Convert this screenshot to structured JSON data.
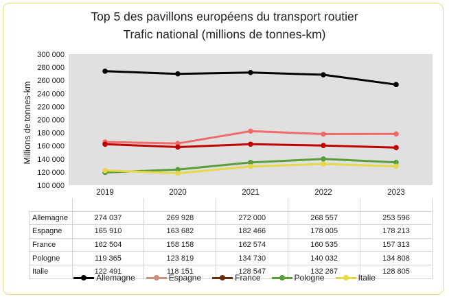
{
  "chart_data": {
    "type": "line",
    "title": "Top 5 des pavillons européens du transport routier",
    "subtitle": "Trafic national (millions de tonnes-km)",
    "ylabel": "Millions de tonnes-km",
    "categories": [
      "2019",
      "2020",
      "2021",
      "2022",
      "2023"
    ],
    "ylim": [
      100000,
      300000
    ],
    "yticks": [
      "100 000",
      "120 000",
      "140 000",
      "160 000",
      "180 000",
      "200 000",
      "220 000",
      "240 000",
      "260 000",
      "280 000",
      "300 000"
    ],
    "grid": false,
    "plot_background": "#e0e0e0",
    "legend_position": "bottom",
    "series": [
      {
        "name": "Allemagne",
        "color": "#000000",
        "legend_color": "#000000",
        "values": [
          274037,
          269928,
          272000,
          268557,
          253596
        ],
        "labels": [
          "274 037",
          "269 928",
          "272 000",
          "268 557",
          "253 596"
        ]
      },
      {
        "name": "Espagne",
        "color": "#f26b6b",
        "legend_color": "#c9907c",
        "values": [
          165910,
          163682,
          182466,
          178005,
          178213
        ],
        "labels": [
          "165 910",
          "163 682",
          "182 466",
          "178 005",
          "178 213"
        ]
      },
      {
        "name": "France",
        "color": "#c00000",
        "legend_color": "#6b2b0f",
        "values": [
          162504,
          158158,
          162574,
          160535,
          157313
        ],
        "labels": [
          "162 504",
          "158 158",
          "162 574",
          "160 535",
          "157 313"
        ]
      },
      {
        "name": "Pologne",
        "color": "#5a9e3a",
        "legend_color": "#5a9e3a",
        "values": [
          119365,
          123819,
          134730,
          140032,
          134808
        ],
        "labels": [
          "119 365",
          "123 819",
          "134 730",
          "140 032",
          "134 808"
        ]
      },
      {
        "name": "Italie",
        "color": "#e7d84a",
        "legend_color": "#e7d84a",
        "values": [
          122491,
          118151,
          128547,
          132267,
          128805
        ],
        "labels": [
          "122 491",
          "118 151",
          "128 547",
          "132 267",
          "128 805"
        ]
      }
    ]
  }
}
